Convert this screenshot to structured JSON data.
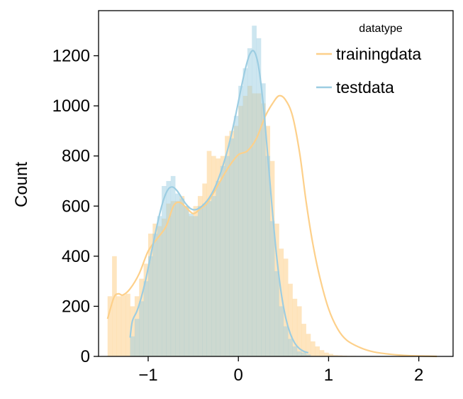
{
  "chart_data": {
    "type": "histogram",
    "ylabel": "Count",
    "xlim": [
      -1.55,
      2.38
    ],
    "ylim": [
      0,
      1380
    ],
    "xticks": [
      -1,
      0,
      1,
      2
    ],
    "xtick_labels": [
      "−1",
      "0",
      "1",
      "2"
    ],
    "yticks": [
      0,
      200,
      400,
      600,
      800,
      1000,
      1200
    ],
    "ytick_labels": [
      "0",
      "200",
      "400",
      "600",
      "800",
      "1000",
      "1200"
    ],
    "legend": {
      "title": "datatype",
      "position": "upper right"
    },
    "colors": {
      "trainingdata": "#fdd08a",
      "testdata": "#9ccde2"
    },
    "series": [
      {
        "name": "trainingdata",
        "bin_start": -1.45,
        "bin_width": 0.05,
        "counts": [
          240,
          400,
          240,
          245,
          250,
          200,
          240,
          310,
          370,
          490,
          530,
          520,
          550,
          610,
          620,
          620,
          640,
          600,
          560,
          600,
          640,
          690,
          820,
          800,
          790,
          800,
          880,
          900,
          920,
          1000,
          1040,
          1080,
          1050,
          1050,
          1010,
          920,
          780,
          530,
          430,
          390,
          290,
          230,
          200,
          130,
          90,
          60,
          40,
          25,
          15,
          10,
          5,
          4,
          3,
          2,
          2,
          1,
          1,
          1,
          1
        ],
        "kde_x": [
          -1.45,
          -1.38,
          -1.33,
          -1.28,
          -1.2,
          -1.1,
          -1.0,
          -0.9,
          -0.8,
          -0.72,
          -0.65,
          -0.58,
          -0.5,
          -0.42,
          -0.35,
          -0.28,
          -0.2,
          -0.1,
          0.0,
          0.1,
          0.2,
          0.3,
          0.38,
          0.45,
          0.52,
          0.6,
          0.68,
          0.75,
          0.82,
          0.9,
          1.0,
          1.1,
          1.2,
          1.35,
          1.5,
          1.7,
          1.9,
          2.1,
          2.2
        ],
        "kde_y": [
          150,
          235,
          250,
          245,
          270,
          330,
          420,
          470,
          520,
          600,
          615,
          595,
          570,
          590,
          610,
          650,
          700,
          760,
          805,
          820,
          870,
          960,
          1010,
          1040,
          1025,
          960,
          810,
          620,
          460,
          320,
          190,
          110,
          65,
          35,
          18,
          8,
          3,
          1,
          0
        ]
      },
      {
        "name": "testdata",
        "bin_start": -1.2,
        "bin_width": 0.05,
        "counts": [
          80,
          150,
          220,
          300,
          400,
          490,
          560,
          680,
          700,
          720,
          650,
          630,
          600,
          570,
          560,
          600,
          610,
          620,
          640,
          700,
          760,
          800,
          870,
          960,
          1080,
          1150,
          1230,
          1320,
          1270,
          1090,
          800,
          540,
          340,
          200,
          120,
          70,
          40,
          20,
          15,
          8
        ]
      }
    ]
  }
}
